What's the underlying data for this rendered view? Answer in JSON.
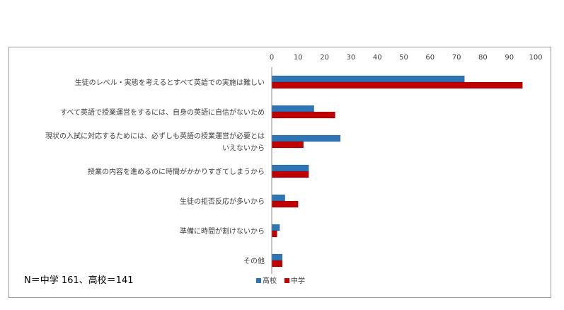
{
  "chart_data": {
    "type": "bar",
    "orientation": "horizontal",
    "categories": [
      [
        "生徒のレベル・実態を考えるとすべて英語での実施は難しい"
      ],
      [
        "すべて英語で授業運営をするには、自身の英語に自信がないため"
      ],
      [
        "現状の入試に対応するためには、必ずしも英語の授業運営が必要とは",
        "いえないから"
      ],
      [
        "授業の内容を進めるのに時間がかかりすぎてしまうから"
      ],
      [
        "生徒の拒否反応が多いから"
      ],
      [
        "準備に時間が割けないから"
      ],
      [
        "その他"
      ]
    ],
    "series": [
      {
        "name": "高校",
        "color": "#2e75b6",
        "values": [
          73,
          16,
          26,
          14,
          5,
          3,
          4
        ]
      },
      {
        "name": "中学",
        "color": "#c00000",
        "values": [
          95,
          24,
          12,
          14,
          10,
          2,
          4
        ]
      }
    ],
    "xlim": [
      0,
      100
    ],
    "xticks": [
      0,
      10,
      20,
      30,
      40,
      50,
      60,
      70,
      80,
      90,
      100
    ],
    "axis_position": "top",
    "grid": false,
    "legend": "bottom"
  },
  "note": "N＝中学 161、高校＝141"
}
